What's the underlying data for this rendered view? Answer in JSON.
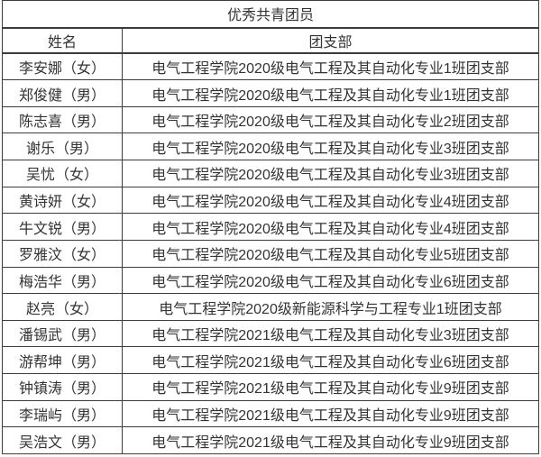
{
  "colors": {
    "background": "#ffffff",
    "border": "#3c3c3c",
    "text": "#333333"
  },
  "table": {
    "title": "优秀共青团员",
    "columns": [
      "姓名",
      "团支部"
    ],
    "rows": [
      {
        "name": "李安娜（女）",
        "branch": "电气工程学院2020级电气工程及其自动化专业1班团支部"
      },
      {
        "name": "郑俊健（男）",
        "branch": "电气工程学院2020级电气工程及其自动化专业1班团支部"
      },
      {
        "name": "陈志喜（男）",
        "branch": "电气工程学院2020级电气工程及其自动化专业2班团支部"
      },
      {
        "name": "谢乐（男）",
        "branch": "电气工程学院2020级电气工程及其自动化专业3班团支部"
      },
      {
        "name": "吴忧（女）",
        "branch": "电气工程学院2020级电气工程及其自动化专业3班团支部"
      },
      {
        "name": "黄诗妍（女）",
        "branch": "电气工程学院2020级电气工程及其自动化专业4班团支部"
      },
      {
        "name": "牛文锐（男）",
        "branch": "电气工程学院2020级电气工程及其自动化专业4班团支部"
      },
      {
        "name": "罗雅汶（女）",
        "branch": "电气工程学院2020级电气工程及其自动化专业5班团支部"
      },
      {
        "name": "梅浩华（男）",
        "branch": "电气工程学院2020级电气工程及其自动化专业6班团支部"
      },
      {
        "name": "赵亮（女）",
        "branch": "电气工程学院2020级新能源科学与工程专业1班团支部"
      },
      {
        "name": "潘锡武（男）",
        "branch": "电气工程学院2021级电气工程及其自动化专业3班团支部"
      },
      {
        "name": "游帮坤（男）",
        "branch": "电气工程学院2021级电气工程及其自动化专业6班团支部"
      },
      {
        "name": "钟镇涛（男）",
        "branch": "电气工程学院2021级电气工程及其自动化专业9班团支部"
      },
      {
        "name": "李瑞屿（男）",
        "branch": "电气工程学院2021级电气工程及其自动化专业9班团支部"
      },
      {
        "name": "吴浩文（男）",
        "branch": "电气工程学院2021级电气工程及其自动化专业9班团支部"
      }
    ]
  }
}
